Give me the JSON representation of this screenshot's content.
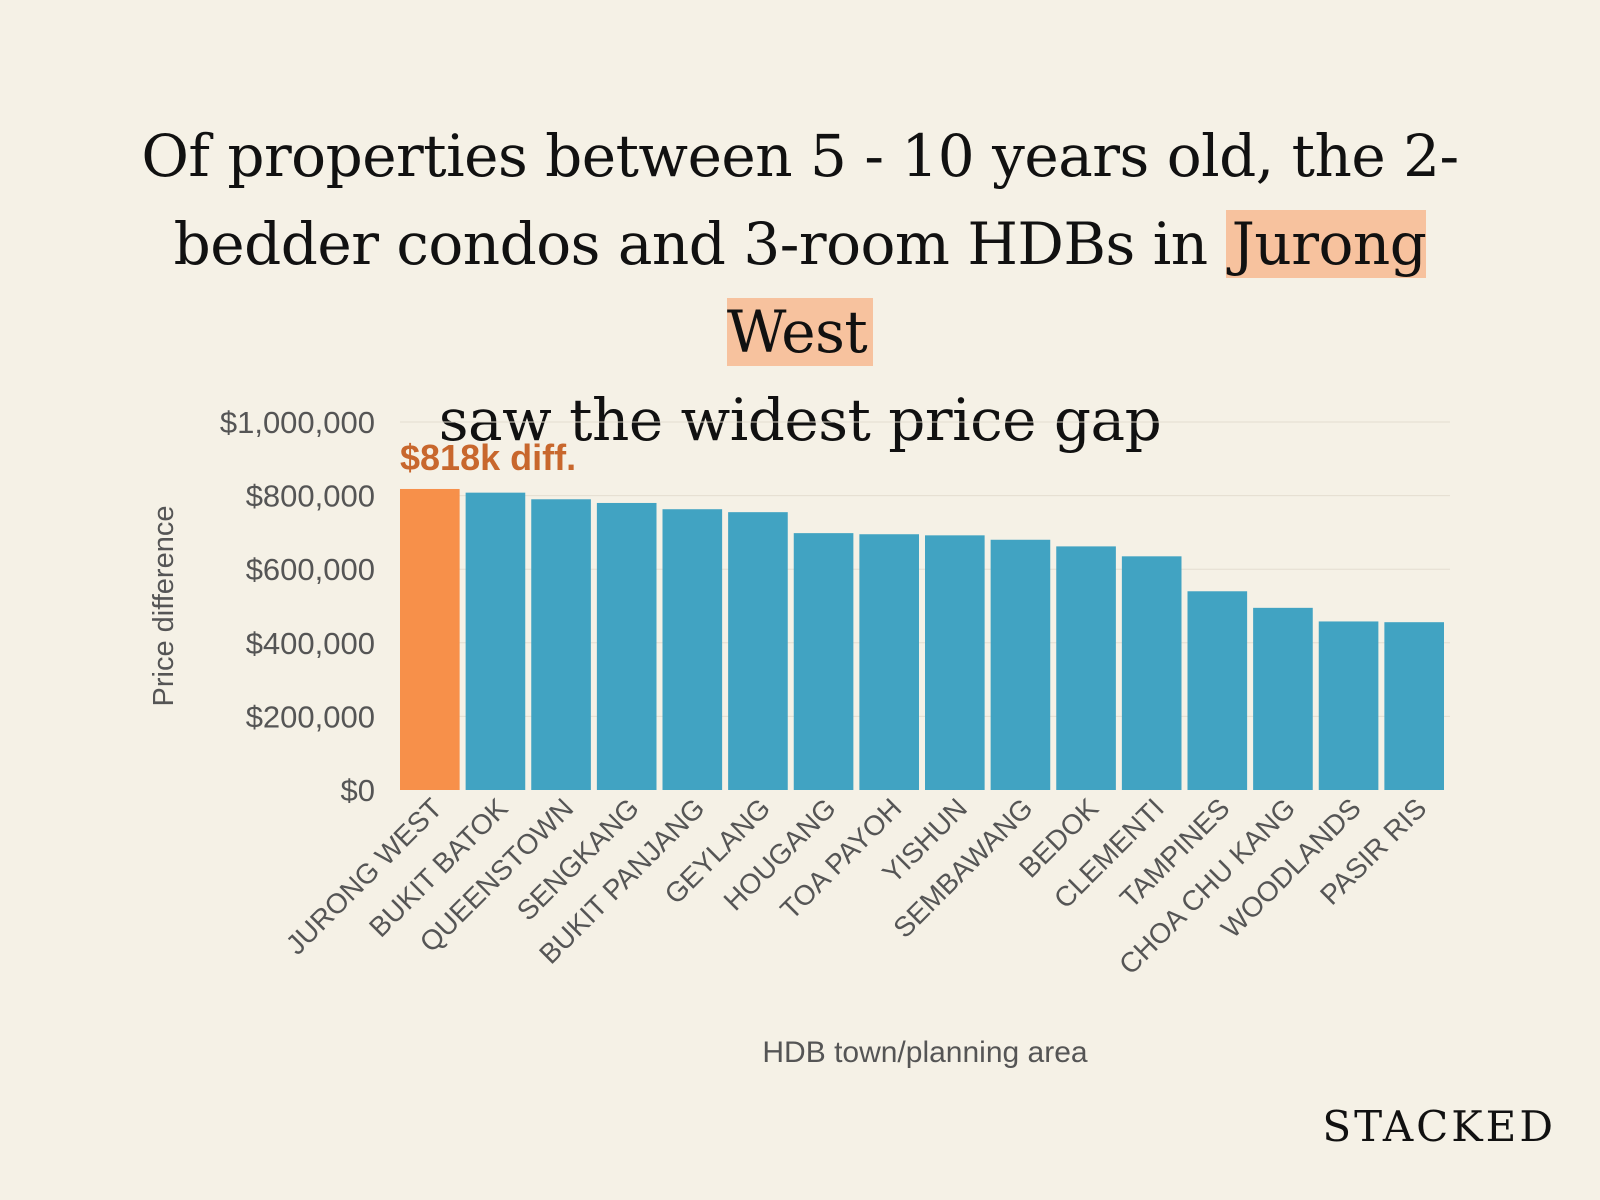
{
  "title": {
    "line1": "Of properties between 5 - 10 years old, the 2-",
    "line2_pre": "bedder condos and 3-room HDBs in",
    "line2_highlight": "Jurong West",
    "line3": "saw the widest price gap"
  },
  "brand": "STACKED",
  "colors": {
    "background": "#f5f1e6",
    "highlight_bar": "#f7904a",
    "bar": "#41a3c2",
    "annotation": "#c8672d",
    "title_highlight": "#f7c29e"
  },
  "chart_data": {
    "type": "bar",
    "xlabel": "HDB town/planning area",
    "ylabel": "Price difference",
    "ylim": [
      0,
      1000000
    ],
    "yticks": [
      0,
      200000,
      400000,
      600000,
      800000,
      1000000
    ],
    "ytick_labels": [
      "$0",
      "$200,000",
      "$400,000",
      "$600,000",
      "$800,000",
      "$1,000,000"
    ],
    "grid": true,
    "categories": [
      "JURONG WEST",
      "BUKIT BATOK",
      "QUEENSTOWN",
      "SENGKANG",
      "BUKIT PANJANG",
      "GEYLANG",
      "HOUGANG",
      "TOA PAYOH",
      "YISHUN",
      "SEMBAWANG",
      "BEDOK",
      "CLEMENTI",
      "TAMPINES",
      "CHOA CHU KANG",
      "WOODLANDS",
      "PASIR RIS"
    ],
    "values": [
      818000,
      808000,
      790000,
      780000,
      763000,
      755000,
      698000,
      695000,
      692000,
      680000,
      662000,
      635000,
      540000,
      495000,
      458000,
      456000
    ],
    "highlight_index": 0,
    "annotation": "$818k diff."
  }
}
